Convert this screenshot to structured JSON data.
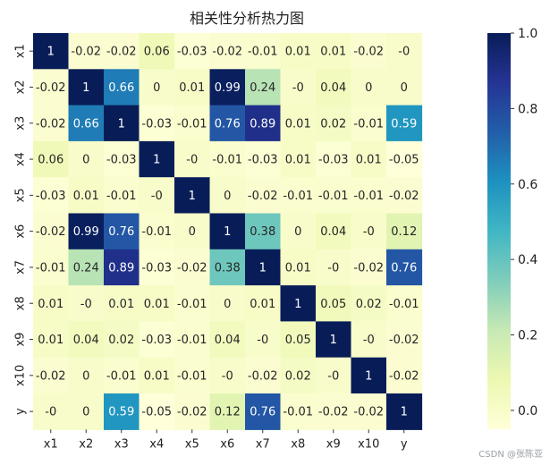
{
  "chart_data": {
    "type": "heatmap",
    "title": "相关性分析热力图",
    "xlabel": "",
    "ylabel": "",
    "rows": [
      "x1",
      "x2",
      "x3",
      "x4",
      "x5",
      "x6",
      "x7",
      "x8",
      "x9",
      "x10",
      "y"
    ],
    "cols": [
      "x1",
      "x2",
      "x3",
      "x4",
      "x5",
      "x6",
      "x7",
      "x8",
      "x9",
      "x10",
      "y"
    ],
    "value_labels": [
      [
        "1",
        "-0.02",
        "-0.02",
        "0.06",
        "-0.03",
        "-0.02",
        "-0.01",
        "0.01",
        "0.01",
        "-0.02",
        "-0"
      ],
      [
        "-0.02",
        "1",
        "0.66",
        "0",
        "0.01",
        "0.99",
        "0.24",
        "-0",
        "0.04",
        "0",
        "0"
      ],
      [
        "-0.02",
        "0.66",
        "1",
        "-0.03",
        "-0.01",
        "0.76",
        "0.89",
        "0.01",
        "0.02",
        "-0.01",
        "0.59"
      ],
      [
        "0.06",
        "0",
        "-0.03",
        "1",
        "-0",
        "-0.01",
        "-0.03",
        "0.01",
        "-0.03",
        "0.01",
        "-0.05"
      ],
      [
        "-0.03",
        "0.01",
        "-0.01",
        "-0",
        "1",
        "0",
        "-0.02",
        "-0.01",
        "-0.01",
        "-0.01",
        "-0.02"
      ],
      [
        "-0.02",
        "0.99",
        "0.76",
        "-0.01",
        "0",
        "1",
        "0.38",
        "0",
        "0.04",
        "-0",
        "0.12"
      ],
      [
        "-0.01",
        "0.24",
        "0.89",
        "-0.03",
        "-0.02",
        "0.38",
        "1",
        "0.01",
        "-0",
        "-0.02",
        "0.76"
      ],
      [
        "0.01",
        "-0",
        "0.01",
        "0.01",
        "-0.01",
        "0",
        "0.01",
        "1",
        "0.05",
        "0.02",
        "-0.01"
      ],
      [
        "0.01",
        "0.04",
        "0.02",
        "-0.03",
        "-0.01",
        "0.04",
        "-0",
        "0.05",
        "1",
        "-0",
        "-0.02"
      ],
      [
        "-0.02",
        "0",
        "-0.01",
        "0.01",
        "-0.01",
        "-0",
        "-0.02",
        "0.02",
        "-0",
        "1",
        "-0.02"
      ],
      [
        "-0",
        "0",
        "0.59",
        "-0.05",
        "-0.02",
        "0.12",
        "0.76",
        "-0.01",
        "-0.02",
        "-0.02",
        "1"
      ]
    ],
    "colorbar": {
      "min": -0.05,
      "max": 1.0,
      "ticks": [
        0.0,
        0.2,
        0.4,
        0.6,
        0.8,
        1.0
      ],
      "tick_labels": [
        "0.0",
        "0.2",
        "0.4",
        "0.6",
        "0.8",
        "1.0"
      ],
      "colormap": "YlGnBu"
    },
    "grid": false,
    "legend": "colorbar-right"
  },
  "watermark": "CSDN @张陈亚"
}
